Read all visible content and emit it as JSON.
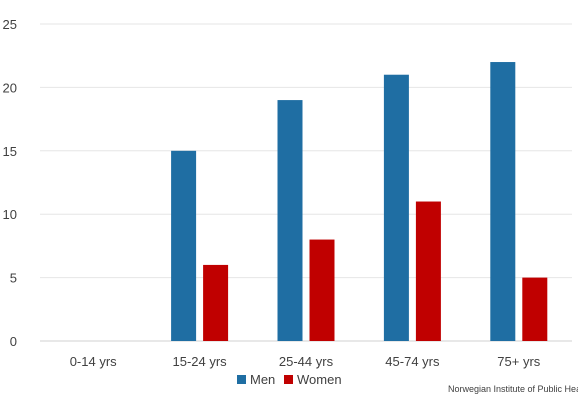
{
  "chart_data": {
    "type": "bar",
    "categories": [
      "0-14 yrs",
      "15-24 yrs",
      "25-44 yrs",
      "45-74 yrs",
      "75+ yrs"
    ],
    "series": [
      {
        "name": "Men",
        "values": [
          0,
          15,
          19,
          21,
          22
        ],
        "color": "#1f6ea3"
      },
      {
        "name": "Women",
        "values": [
          0,
          6,
          8,
          11,
          5
        ],
        "color": "#c00000"
      }
    ],
    "ylim": [
      0,
      25
    ],
    "yticks": [
      0,
      5,
      10,
      15,
      20,
      25
    ],
    "grid": true,
    "legend_position": "bottom-center",
    "source": "Norwegian Institute of Public Health"
  }
}
